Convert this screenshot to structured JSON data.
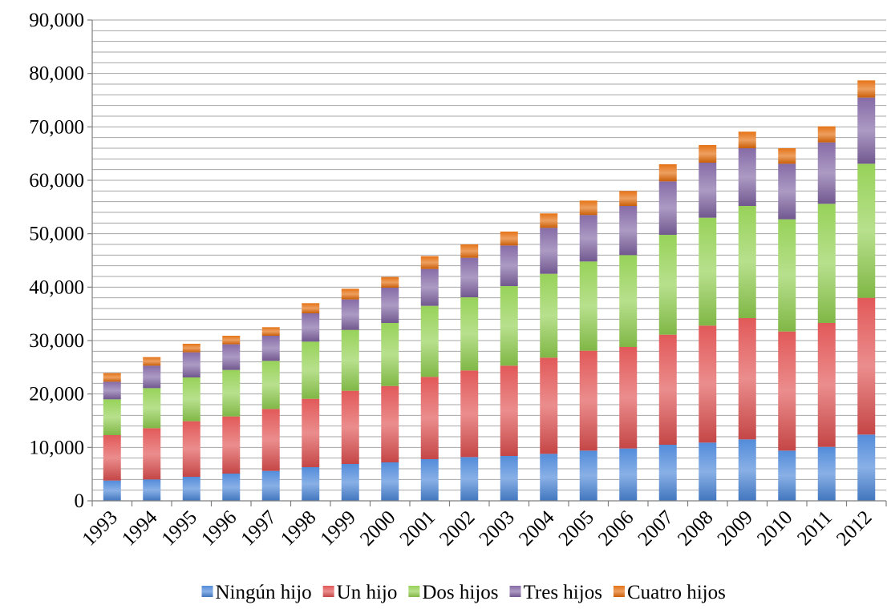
{
  "chart_data": {
    "type": "bar",
    "stacked": true,
    "title": "",
    "xlabel": "",
    "ylabel": "",
    "ylim": [
      0,
      90000
    ],
    "y_ticks": [
      0,
      10000,
      20000,
      30000,
      40000,
      50000,
      60000,
      70000,
      80000,
      90000
    ],
    "y_tick_labels": [
      "0",
      "10,000",
      "20,000",
      "30,000",
      "40,000",
      "50,000",
      "60,000",
      "70,000",
      "80,000",
      "90,000"
    ],
    "grid": true,
    "legend_position": "bottom",
    "categories": [
      "1993",
      "1994",
      "1995",
      "1996",
      "1997",
      "1998",
      "1999",
      "2000",
      "2001",
      "2002",
      "2003",
      "2004",
      "2005",
      "2006",
      "2007",
      "2008",
      "2009",
      "2010",
      "2011",
      "2012"
    ],
    "series": [
      {
        "name": "Ningún hijo",
        "color": "#4a86d8",
        "values": [
          3800,
          4000,
          4500,
          5100,
          5600,
          6300,
          6900,
          7200,
          7800,
          8200,
          8400,
          8800,
          9400,
          9800,
          10500,
          10900,
          11500,
          9400,
          10100,
          12400
        ]
      },
      {
        "name": "Un hijo",
        "color": "#e05050",
        "values": [
          8500,
          9600,
          10400,
          10700,
          11600,
          12800,
          13700,
          14300,
          15400,
          16200,
          16900,
          18000,
          18700,
          19000,
          20600,
          21900,
          22700,
          22300,
          23200,
          25600
        ]
      },
      {
        "name": "Dos hijos",
        "color": "#92d050",
        "values": [
          6700,
          7500,
          8200,
          8700,
          9000,
          10700,
          11400,
          11800,
          13300,
          13700,
          14900,
          15700,
          16700,
          17200,
          18700,
          20200,
          21000,
          21000,
          22300,
          25100
        ]
      },
      {
        "name": "Tres hijos",
        "color": "#8064a2",
        "values": [
          3300,
          4200,
          4700,
          4800,
          4700,
          5300,
          5700,
          6600,
          6900,
          7400,
          7600,
          8600,
          8700,
          9200,
          10000,
          10300,
          10800,
          10400,
          11500,
          12400
        ]
      },
      {
        "name": "Cuatro hijos",
        "color": "#e46c0a",
        "values": [
          1600,
          1600,
          1600,
          1600,
          1600,
          1900,
          2000,
          2000,
          2400,
          2500,
          2600,
          2700,
          2700,
          2800,
          3200,
          3300,
          3100,
          2900,
          3000,
          3200
        ]
      }
    ]
  }
}
